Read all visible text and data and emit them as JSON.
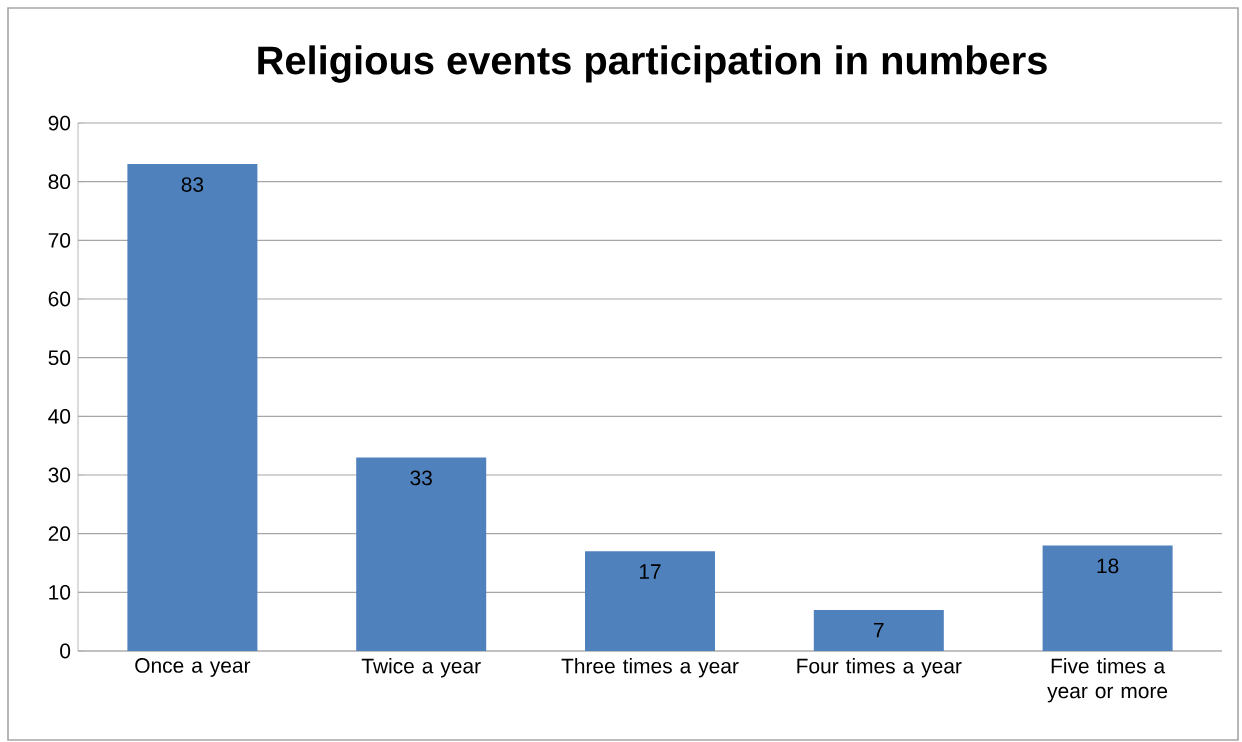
{
  "chart_data": {
    "type": "bar",
    "title": "Religious events participation in numbers",
    "categories": [
      "Once a year",
      "Twice a year",
      "Three times a year",
      "Four times a year",
      "Five times a year or more"
    ],
    "values": [
      83,
      33,
      17,
      7,
      18
    ],
    "color": "#4f81bd",
    "ylim": [
      0,
      90
    ],
    "yticks": [
      0,
      10,
      20,
      30,
      40,
      50,
      60,
      70,
      80,
      90
    ],
    "grid": "y",
    "data_labels": true
  }
}
